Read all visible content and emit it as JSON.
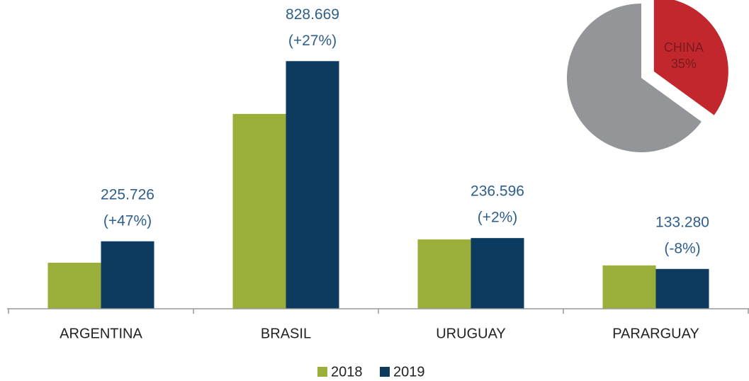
{
  "chart_data": [
    {
      "type": "bar",
      "categories": [
        "ARGENTINA",
        "BRASIL",
        "URUGUAY",
        "PARARGUAY"
      ],
      "series": [
        {
          "name": "2018",
          "color": "#9aae3a",
          "values": [
            154000,
            652000,
            232000,
            145000
          ]
        },
        {
          "name": "2019",
          "color": "#0d3a5f",
          "values": [
            225726,
            828669,
            236596,
            133280
          ],
          "value_labels": [
            "225.726",
            "828.669",
            "236.596",
            "133.280"
          ],
          "changes": [
            47,
            27,
            2,
            -8
          ],
          "change_labels": [
            "(+47%)",
            "(+27%)",
            "(+2%)",
            "(-8%)"
          ]
        }
      ],
      "ylim": [
        0,
        1000000
      ]
    },
    {
      "type": "pie",
      "categories": [
        "CHINA",
        null
      ],
      "values": [
        35,
        65
      ],
      "value_labels": [
        "35%",
        null
      ],
      "colors": [
        "#c1272d",
        "#939598"
      ]
    }
  ]
}
